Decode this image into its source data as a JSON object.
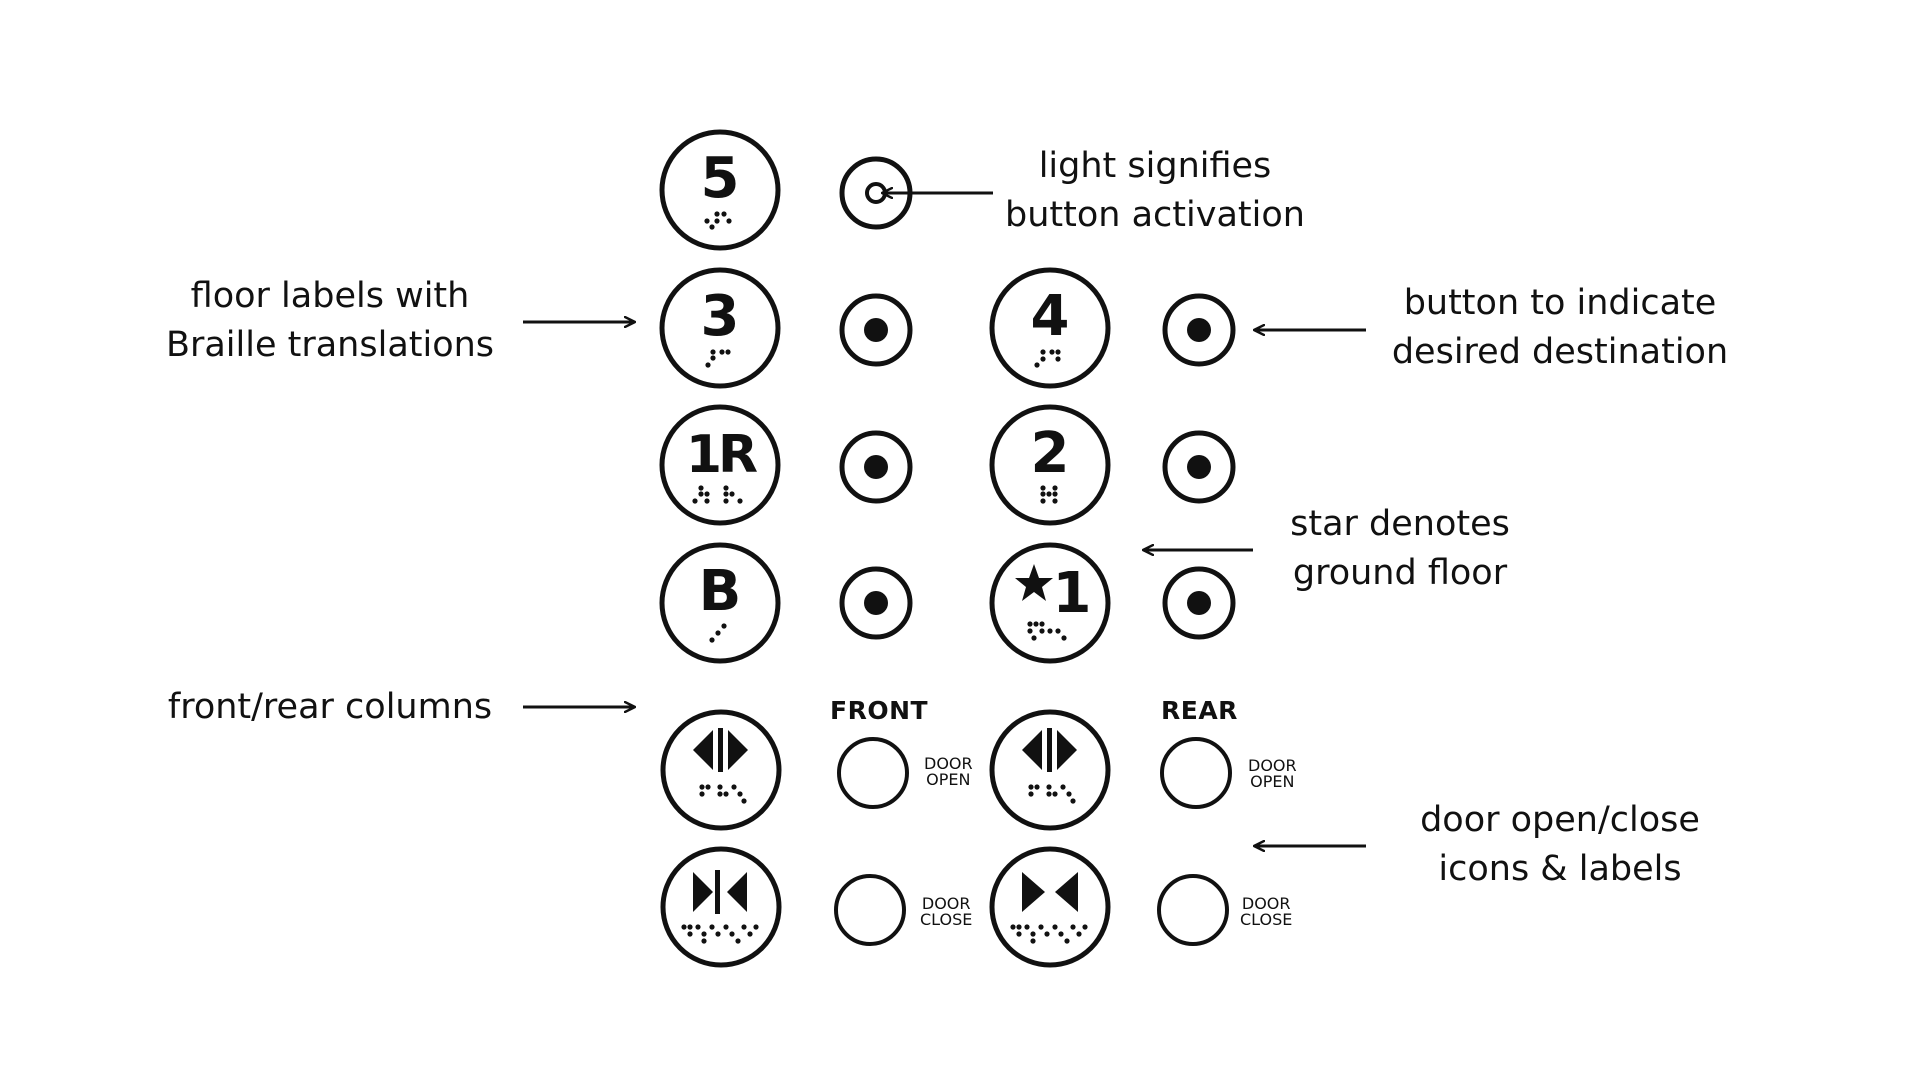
{
  "annotations": {
    "light": [
      "light signifies",
      "button activation"
    ],
    "floor_labels": [
      "floor labels with",
      "Braille translations"
    ],
    "destination": [
      "button to indicate",
      "desired destination"
    ],
    "star": [
      "star denotes",
      "ground floor"
    ],
    "columns": [
      "front/rear columns"
    ],
    "doors": [
      "door open/close",
      "icons & labels"
    ]
  },
  "column_headers": {
    "front": "FRONT",
    "rear": "REAR"
  },
  "floor_labels": {
    "floor_5": "5",
    "floor_3": "3",
    "floor_4": "4",
    "floor_1r": "1R",
    "floor_2": "2",
    "floor_b": "B",
    "floor_1": "1"
  },
  "door_labels": {
    "front_open": [
      "DOOR",
      "OPEN"
    ],
    "rear_open": [
      "DOOR",
      "OPEN"
    ],
    "front_close": [
      "DOOR",
      "CLOSE"
    ],
    "rear_close": [
      "DOOR",
      "CLOSE"
    ]
  },
  "icons": {
    "ground_floor": "star-icon",
    "door_open": "door-open-icon",
    "door_close": "door-close-icon",
    "light": "indicator-light-icon"
  },
  "colors": {
    "ink": "#111111",
    "background": "#ffffff"
  }
}
